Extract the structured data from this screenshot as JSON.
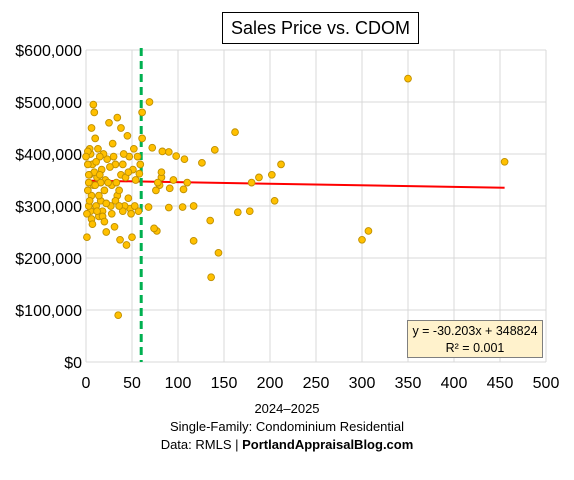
{
  "chart_data": {
    "type": "scatter",
    "title": "Sales Price vs. CDOM",
    "xlim": [
      0,
      500
    ],
    "ylim": [
      0,
      600000
    ],
    "x_ticks": [
      0,
      50,
      100,
      150,
      200,
      250,
      300,
      350,
      400,
      450,
      500
    ],
    "y_ticks": [
      0,
      100000,
      200000,
      300000,
      400000,
      500000,
      600000
    ],
    "y_tick_labels": [
      "$0",
      "$100,000",
      "$200,000",
      "$300,000",
      "$400,000",
      "$500,000",
      "$600,000"
    ],
    "grid": true,
    "marker_color": "#ffc000",
    "marker_edge": "#bf8f00",
    "trendline": {
      "slope": -30.203,
      "intercept": 348824,
      "x_range": [
        0,
        455
      ],
      "color": "#ff0000"
    },
    "equation_text": "y = -30.203x + 348824",
    "r2_text": "R² = 0.001",
    "reference_line": {
      "x": 60,
      "color": "#00b050",
      "style": "dashed"
    },
    "points": [
      [
        350,
        545000
      ],
      [
        455,
        385000
      ],
      [
        300,
        235000
      ],
      [
        307,
        252000
      ],
      [
        212,
        380000
      ],
      [
        202,
        360000
      ],
      [
        205,
        310000
      ],
      [
        188,
        355000
      ],
      [
        180,
        345000
      ],
      [
        178,
        290000
      ],
      [
        162,
        442000
      ],
      [
        165,
        288000
      ],
      [
        140,
        408000
      ],
      [
        135,
        272000
      ],
      [
        136,
        163000
      ],
      [
        144,
        210000
      ],
      [
        126,
        383000
      ],
      [
        117,
        300000
      ],
      [
        117,
        233000
      ],
      [
        110,
        345000
      ],
      [
        107,
        390000
      ],
      [
        105,
        298000
      ],
      [
        106,
        332000
      ],
      [
        98,
        396000
      ],
      [
        95,
        350000
      ],
      [
        91,
        334000
      ],
      [
        90,
        404000
      ],
      [
        90,
        297000
      ],
      [
        83,
        405000
      ],
      [
        82,
        355000
      ],
      [
        82,
        365000
      ],
      [
        80,
        340000
      ],
      [
        78,
        345000
      ],
      [
        76,
        330000
      ],
      [
        77,
        252000
      ],
      [
        74,
        257000
      ],
      [
        72,
        412000
      ],
      [
        69,
        500000
      ],
      [
        68,
        298000
      ],
      [
        61,
        480000
      ],
      [
        61,
        430000
      ],
      [
        59,
        380000
      ],
      [
        58,
        362000
      ],
      [
        57,
        290000
      ],
      [
        54,
        350000
      ],
      [
        52,
        410000
      ],
      [
        50,
        240000
      ],
      [
        48,
        295000
      ],
      [
        47,
        395000
      ],
      [
        45,
        435000
      ],
      [
        44,
        225000
      ],
      [
        41,
        400000
      ],
      [
        42,
        300000
      ],
      [
        38,
        450000
      ],
      [
        38,
        360000
      ],
      [
        37,
        235000
      ],
      [
        35,
        90000
      ],
      [
        34,
        470000
      ],
      [
        34,
        320000
      ],
      [
        32,
        380000
      ],
      [
        32,
        310000
      ],
      [
        31,
        260000
      ],
      [
        29,
        420000
      ],
      [
        28,
        340000
      ],
      [
        27,
        300000
      ],
      [
        25,
        460000
      ],
      [
        23,
        390000
      ],
      [
        22,
        250000
      ],
      [
        21,
        350000
      ],
      [
        20,
        330000
      ],
      [
        19,
        400000
      ],
      [
        18,
        290000
      ],
      [
        17,
        370000
      ],
      [
        16,
        310000
      ],
      [
        15,
        395000
      ],
      [
        14,
        280000
      ],
      [
        13,
        410000
      ],
      [
        12,
        355000
      ],
      [
        11,
        300000
      ],
      [
        10,
        430000
      ],
      [
        9,
        480000
      ],
      [
        8,
        495000
      ],
      [
        8,
        340000
      ],
      [
        7,
        380000
      ],
      [
        6,
        320000
      ],
      [
        6,
        450000
      ],
      [
        5,
        400000
      ],
      [
        5,
        290000
      ],
      [
        4,
        360000
      ],
      [
        4,
        410000
      ],
      [
        3,
        345000
      ],
      [
        3,
        300000
      ],
      [
        2,
        330000
      ],
      [
        2,
        380000
      ],
      [
        1,
        285000
      ],
      [
        1,
        240000
      ],
      [
        2,
        405000
      ],
      [
        0,
        395000
      ],
      [
        4,
        310000
      ],
      [
        6,
        275000
      ],
      [
        9,
        365000
      ],
      [
        11,
        385000
      ],
      [
        14,
        320000
      ],
      [
        16,
        345000
      ],
      [
        18,
        280000
      ],
      [
        22,
        305000
      ],
      [
        26,
        375000
      ],
      [
        30,
        395000
      ],
      [
        33,
        345000
      ],
      [
        36,
        330000
      ],
      [
        40,
        380000
      ],
      [
        43,
        355000
      ],
      [
        46,
        315000
      ],
      [
        49,
        285000
      ],
      [
        51,
        370000
      ],
      [
        53,
        300000
      ],
      [
        56,
        395000
      ],
      [
        46,
        365000
      ],
      [
        40,
        290000
      ],
      [
        36,
        300000
      ],
      [
        28,
        285000
      ],
      [
        24,
        345000
      ],
      [
        20,
        270000
      ],
      [
        12,
        290000
      ],
      [
        7,
        265000
      ],
      [
        3,
        360000
      ],
      [
        10,
        340000
      ],
      [
        15,
        360000
      ]
    ]
  },
  "caption": {
    "line1": "2024–2025",
    "line2": "Single-Family: Condominium Residential",
    "line3_prefix": "Data: RMLS | ",
    "line3_bold": "PortlandAppraisalBlog.com"
  }
}
